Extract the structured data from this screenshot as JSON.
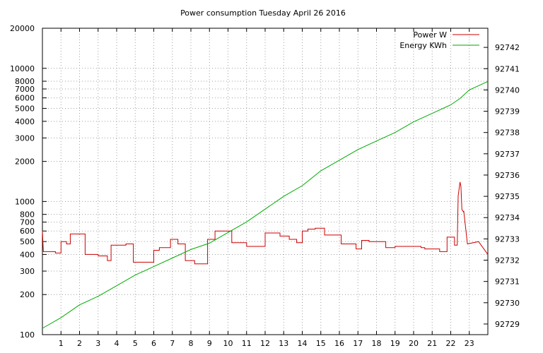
{
  "chart_data": {
    "type": "line",
    "title": "Power consumption Tuesday April 26 2016",
    "xlabel": "",
    "ylabel": "",
    "xlim": [
      0,
      24
    ],
    "x_ticks": [
      1,
      2,
      3,
      4,
      5,
      6,
      7,
      8,
      9,
      10,
      11,
      12,
      13,
      14,
      15,
      16,
      17,
      18,
      19,
      20,
      21,
      22,
      23
    ],
    "y_left": {
      "scale": "log",
      "range": [
        100,
        20000
      ],
      "ticks": [
        {
          "v": 100,
          "label": "100"
        },
        {
          "v": 200,
          "label": "200"
        },
        {
          "v": 300,
          "label": "300"
        },
        {
          "v": 400,
          "label": "400"
        },
        {
          "v": 500,
          "label": "500"
        },
        {
          "v": 600,
          "label": "600"
        },
        {
          "v": 700,
          "label": "700"
        },
        {
          "v": 800,
          "label": "800"
        },
        {
          "v": 1000,
          "label": "1000"
        },
        {
          "v": 2000,
          "label": "2000"
        },
        {
          "v": 3000,
          "label": "3000"
        },
        {
          "v": 4000,
          "label": "4000"
        },
        {
          "v": 5000,
          "label": "5000"
        },
        {
          "v": 6000,
          "label": "6000"
        },
        {
          "v": 7000,
          "label": "7000"
        },
        {
          "v": 8000,
          "label": "8000"
        },
        {
          "v": 10000,
          "label": "10000"
        },
        {
          "v": 20000,
          "label": "20000"
        }
      ]
    },
    "y_right": {
      "scale": "linear",
      "range": [
        92728.5,
        92742.9
      ],
      "ticks": [
        92729,
        92730,
        92731,
        92732,
        92733,
        92734,
        92735,
        92736,
        92737,
        92738,
        92739,
        92740,
        92741,
        92742
      ]
    },
    "grid": true,
    "legend_position": "top-right",
    "series": [
      {
        "name": "Power W",
        "axis": "left",
        "color": "#cc0000",
        "step": true,
        "x": [
          0,
          0.05,
          0.7,
          0.7,
          1,
          1,
          1.3,
          1.3,
          1.5,
          1.5,
          2.3,
          2.3,
          3,
          3,
          3.5,
          3.5,
          3.7,
          3.7,
          4.5,
          4.5,
          4.9,
          4.9,
          5.2,
          5.2,
          6,
          6,
          6.3,
          6.3,
          6.9,
          6.9,
          7.3,
          7.3,
          7.7,
          7.7,
          8.2,
          8.2,
          8.9,
          8.9,
          9.3,
          9.3,
          10.2,
          10.2,
          11,
          11,
          12,
          12,
          12.8,
          12.8,
          13.3,
          13.3,
          13.7,
          13.7,
          14,
          14,
          14.3,
          14.3,
          14.7,
          14.7,
          15.2,
          15.2,
          16.1,
          16.1,
          16.9,
          16.9,
          17.2,
          17.2,
          17.6,
          17.6,
          18.5,
          18.5,
          19,
          19,
          20.4,
          20.4,
          20.6,
          20.6,
          21.4,
          21.4,
          21.8,
          21.8,
          22.2,
          22.2,
          22.35,
          22.4,
          22.5,
          22.55,
          22.6,
          22.7,
          22.7,
          22.9,
          22.9,
          23.5,
          23.5,
          24
        ],
        "y": [
          600,
          420,
          420,
          410,
          410,
          500,
          500,
          480,
          480,
          570,
          570,
          400,
          400,
          390,
          390,
          360,
          360,
          470,
          470,
          480,
          480,
          350,
          350,
          350,
          350,
          430,
          430,
          450,
          450,
          520,
          520,
          480,
          480,
          360,
          360,
          340,
          340,
          520,
          520,
          600,
          600,
          490,
          490,
          460,
          460,
          580,
          580,
          550,
          550,
          520,
          520,
          490,
          490,
          600,
          600,
          620,
          620,
          630,
          630,
          560,
          560,
          480,
          480,
          440,
          440,
          510,
          510,
          500,
          500,
          450,
          450,
          460,
          460,
          450,
          450,
          440,
          440,
          420,
          420,
          540,
          540,
          470,
          470,
          1100,
          1400,
          1300,
          870,
          830,
          850,
          480,
          480,
          500,
          500,
          400
        ]
      },
      {
        "name": "Energy KWh",
        "axis": "right",
        "color": "#00aa00",
        "step": false,
        "x": [
          0,
          1,
          2,
          3,
          4,
          5,
          6,
          7,
          8,
          9,
          10,
          11,
          12,
          13,
          14,
          15,
          16,
          17,
          18,
          19,
          20,
          21,
          22,
          22.5,
          23,
          24
        ],
        "y": [
          92728.8,
          92729.3,
          92729.9,
          92730.3,
          92730.8,
          92731.3,
          92731.7,
          92732.1,
          92732.5,
          92732.8,
          92733.3,
          92733.8,
          92734.4,
          92735,
          92735.5,
          92736.2,
          92736.7,
          92737.2,
          92737.6,
          92738.0,
          92738.5,
          92738.9,
          92739.3,
          92739.6,
          92740.0,
          92740.4
        ]
      }
    ]
  }
}
